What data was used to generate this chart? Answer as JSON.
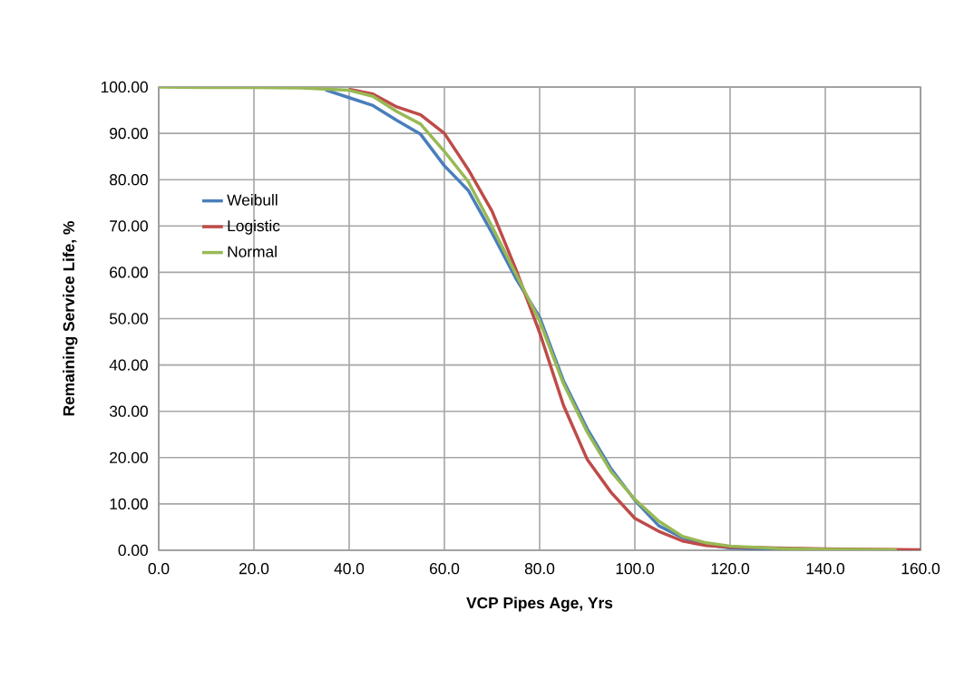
{
  "chart_data": {
    "type": "line",
    "xlabel": "VCP Pipes Age, Yrs",
    "ylabel": "Remaining Service Life, %",
    "xlim": [
      0,
      160
    ],
    "ylim": [
      0,
      100
    ],
    "xticks": [
      {
        "value": 0,
        "label": "0.0"
      },
      {
        "value": 20,
        "label": "20.0"
      },
      {
        "value": 40,
        "label": "40.0"
      },
      {
        "value": 60,
        "label": "60.0"
      },
      {
        "value": 80,
        "label": "80.0"
      },
      {
        "value": 100,
        "label": "100.0"
      },
      {
        "value": 120,
        "label": "120.0"
      },
      {
        "value": 140,
        "label": "140.0"
      },
      {
        "value": 160,
        "label": "160.0"
      }
    ],
    "yticks": [
      {
        "value": 0,
        "label": "0.00"
      },
      {
        "value": 10,
        "label": "10.00"
      },
      {
        "value": 20,
        "label": "20.00"
      },
      {
        "value": 30,
        "label": "30.00"
      },
      {
        "value": 40,
        "label": "40.00"
      },
      {
        "value": 50,
        "label": "50.00"
      },
      {
        "value": 60,
        "label": "60.00"
      },
      {
        "value": 70,
        "label": "70.00"
      },
      {
        "value": 80,
        "label": "80.00"
      },
      {
        "value": 90,
        "label": "90.00"
      },
      {
        "value": 100,
        "label": "100.00"
      }
    ],
    "grid": true,
    "legend": "left",
    "marker": "none",
    "line_style": "solid",
    "series": [
      {
        "name": "Weibull",
        "color": "#4a7ebb",
        "x": [
          35,
          40,
          45,
          50,
          55,
          60,
          65,
          70,
          75,
          80,
          85,
          90,
          95,
          100,
          105,
          110,
          115,
          120,
          130,
          145
        ],
        "values": [
          99.4,
          97.7,
          96,
          92.8,
          89.8,
          83,
          77.7,
          68.5,
          58.7,
          50.3,
          36.6,
          26.2,
          17.6,
          10.8,
          5.3,
          2.7,
          1.2,
          0.5,
          0.1,
          0
        ]
      },
      {
        "name": "Logistic",
        "color": "#be4b48",
        "x": [
          40,
          45,
          50,
          55,
          60,
          65,
          70,
          75,
          80,
          85,
          90,
          95,
          100,
          105,
          110,
          115,
          120,
          130,
          140,
          160
        ],
        "values": [
          99.5,
          98.5,
          95.7,
          94,
          90,
          82.2,
          73.2,
          60.7,
          47,
          31.3,
          19.6,
          12.5,
          6.9,
          4.1,
          2,
          1,
          0.7,
          0.5,
          0.3,
          0.1
        ]
      },
      {
        "name": "Normal",
        "color": "#98b954",
        "x": [
          0,
          10,
          20,
          30,
          40,
          45,
          50,
          55,
          60,
          65,
          70,
          75,
          80,
          85,
          90,
          95,
          100,
          105,
          110,
          115,
          120,
          130,
          140,
          155
        ],
        "values": [
          100,
          99.9,
          99.9,
          99.8,
          99.3,
          98,
          94.7,
          92,
          86.1,
          79.6,
          69.9,
          59.7,
          49.5,
          36,
          25.5,
          17,
          11,
          6.3,
          3,
          1.6,
          0.9,
          0.4,
          0.2,
          0.1
        ]
      }
    ]
  }
}
